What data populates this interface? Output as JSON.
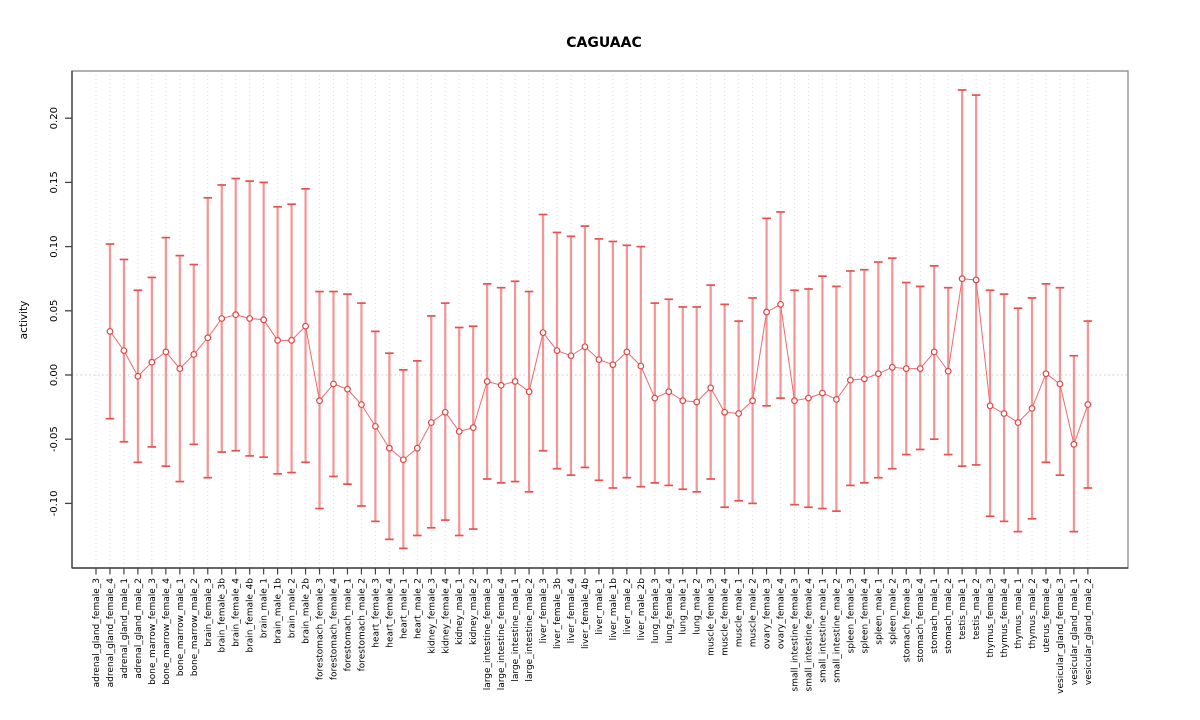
{
  "chart_data": {
    "type": "pointrange-errorbar",
    "title": "CAGUAAC",
    "ylabel": "activity",
    "xlabel": "",
    "ylim": [
      -0.15,
      0.237
    ],
    "yticks": [
      0.2,
      0.15,
      0.1,
      0.05,
      0.0,
      -0.05,
      -0.1
    ],
    "ytick_labels": [
      "0.20",
      "0.15",
      "0.10",
      "0.05",
      "0.00",
      "-0.05",
      "-0.10"
    ],
    "grid": "vertical-dotted-per-category",
    "zero_line": "dotted",
    "legend": "none",
    "categories": [
      "adrenal_gland_female_3",
      "adrenal_gland_female_4",
      "adrenal_gland_male_1",
      "adrenal_gland_male_2",
      "bone_marrow_female_3",
      "bone_marrow_female_4",
      "bone_marrow_male_1",
      "bone_marrow_male_2",
      "brain_female_3",
      "brain_female_3b",
      "brain_female_4",
      "brain_female_4b",
      "brain_male_1",
      "brain_male_1b",
      "brain_male_2",
      "brain_male_2b",
      "forestomach_female_3",
      "forestomach_female_4",
      "forestomach_male_1",
      "forestomach_male_2",
      "heart_female_3",
      "heart_female_4",
      "heart_male_1",
      "heart_male_2",
      "kidney_female_3",
      "kidney_female_4",
      "kidney_male_1",
      "kidney_male_2",
      "large_intestine_female_3",
      "large_intestine_female_4",
      "large_intestine_male_1",
      "large_intestine_male_2",
      "liver_female_3",
      "liver_female_3b",
      "liver_female_4",
      "liver_female_4b",
      "liver_male_1",
      "liver_male_1b",
      "liver_male_2",
      "liver_male_2b",
      "lung_female_3",
      "lung_female_4",
      "lung_male_1",
      "lung_male_2",
      "muscle_female_3",
      "muscle_female_4",
      "muscle_male_1",
      "muscle_male_2",
      "ovary_female_3",
      "ovary_female_4",
      "small_intestine_female_3",
      "small_intestine_female_4",
      "small_intestine_male_1",
      "small_intestine_male_2",
      "spleen_female_3",
      "spleen_female_4",
      "spleen_male_1",
      "spleen_male_2",
      "stomach_female_3",
      "stomach_female_4",
      "stomach_male_1",
      "stomach_male_2",
      "testis_male_1",
      "testis_male_2",
      "thymus_female_3",
      "thymus_female_4",
      "thymus_male_1",
      "thymus_male_2",
      "uterus_female_4",
      "vesicular_gland_female_3",
      "vesicular_gland_male_1",
      "vesicular_gland_male_2"
    ],
    "series": [
      {
        "name": "activity",
        "values": [
          null,
          0.034,
          0.019,
          -0.001,
          0.01,
          0.018,
          0.005,
          0.016,
          0.029,
          0.044,
          0.047,
          0.044,
          0.043,
          0.027,
          0.027,
          0.038,
          -0.02,
          -0.007,
          -0.011,
          -0.023,
          -0.04,
          -0.057,
          -0.066,
          -0.057,
          -0.037,
          -0.029,
          -0.044,
          -0.041,
          -0.005,
          -0.008,
          -0.005,
          -0.013,
          0.033,
          0.019,
          0.015,
          0.022,
          0.012,
          0.008,
          0.018,
          0.007,
          -0.018,
          -0.013,
          -0.02,
          -0.021,
          -0.01,
          -0.029,
          -0.03,
          -0.02,
          0.049,
          0.055,
          -0.02,
          -0.018,
          -0.014,
          -0.019,
          -0.004,
          -0.003,
          0.001,
          0.006,
          0.005,
          0.005,
          0.018,
          0.003,
          0.075,
          0.074,
          -0.024,
          -0.03,
          -0.037,
          -0.026,
          0.001,
          -0.007,
          -0.054,
          -0.023
        ],
        "lower": [
          null,
          -0.034,
          -0.052,
          -0.068,
          -0.056,
          -0.071,
          -0.083,
          -0.054,
          -0.08,
          -0.06,
          -0.059,
          -0.063,
          -0.064,
          -0.077,
          -0.076,
          -0.068,
          -0.104,
          -0.079,
          -0.085,
          -0.102,
          -0.114,
          -0.128,
          -0.135,
          -0.125,
          -0.119,
          -0.113,
          -0.125,
          -0.12,
          -0.081,
          -0.084,
          -0.083,
          -0.091,
          -0.059,
          -0.073,
          -0.078,
          -0.072,
          -0.082,
          -0.088,
          -0.08,
          -0.087,
          -0.084,
          -0.086,
          -0.089,
          -0.091,
          -0.081,
          -0.103,
          -0.098,
          -0.1,
          -0.024,
          -0.018,
          -0.101,
          -0.103,
          -0.104,
          -0.106,
          -0.086,
          -0.084,
          -0.08,
          -0.073,
          -0.062,
          -0.058,
          -0.05,
          -0.062,
          -0.071,
          -0.07,
          -0.11,
          -0.114,
          -0.122,
          -0.112,
          -0.068,
          -0.078,
          -0.122,
          -0.088
        ],
        "upper": [
          null,
          0.102,
          0.09,
          0.066,
          0.076,
          0.107,
          0.093,
          0.086,
          0.138,
          0.148,
          0.153,
          0.151,
          0.15,
          0.131,
          0.133,
          0.145,
          0.065,
          0.065,
          0.063,
          0.056,
          0.034,
          0.017,
          0.004,
          0.011,
          0.046,
          0.056,
          0.037,
          0.038,
          0.071,
          0.068,
          0.073,
          0.065,
          0.125,
          0.111,
          0.108,
          0.116,
          0.106,
          0.104,
          0.101,
          0.1,
          0.056,
          0.059,
          0.053,
          0.053,
          0.07,
          0.055,
          0.042,
          0.06,
          0.122,
          0.127,
          0.066,
          0.067,
          0.077,
          0.069,
          0.081,
          0.082,
          0.088,
          0.091,
          0.072,
          0.069,
          0.085,
          0.068,
          0.222,
          0.218,
          0.066,
          0.063,
          0.052,
          0.06,
          0.071,
          0.068,
          0.015,
          0.042
        ]
      }
    ]
  },
  "colors": {
    "error_bar_stem": "#f59494",
    "error_bar_cap": "#e85050",
    "point_stroke": "#e04545",
    "point_fill": "#ffffff",
    "series_line": "#ee6a6a",
    "gridline": "#dedede",
    "zero_line": "#d9c2c2",
    "frame": "#919191",
    "axis": "#444444",
    "text": "#000000"
  }
}
